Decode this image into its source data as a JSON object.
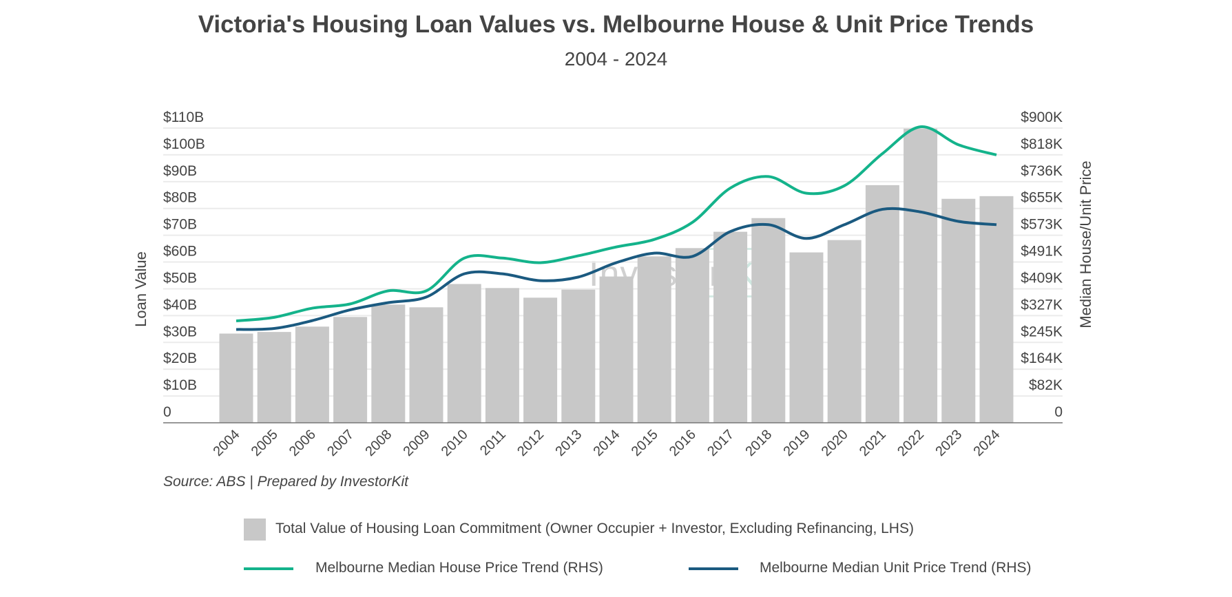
{
  "chart_data": {
    "type": "bar+line",
    "title": "Victoria's Housing Loan Values vs. Melbourne House & Unit Price Trends",
    "subtitle": "2004 - 2024",
    "ylabel": "Loan Value",
    "y2label": "Median House/Unit Price",
    "categories": [
      "2004",
      "2005",
      "2006",
      "2007",
      "2008",
      "2009",
      "2010",
      "2011",
      "2012",
      "2013",
      "2014",
      "2015",
      "2016",
      "2017",
      "2018",
      "2019",
      "2020",
      "2021",
      "2022",
      "2023",
      "2024"
    ],
    "ylim": [
      0,
      110
    ],
    "y2lim": [
      0,
      900
    ],
    "yticks": [
      "0",
      "$10B",
      "$20B",
      "$30B",
      "$40B",
      "$50B",
      "$60B",
      "$70B",
      "$80B",
      "$90B",
      "$100B",
      "$110B"
    ],
    "y2ticks": [
      "0",
      "$82K",
      "$164K",
      "$245K",
      "$327K",
      "$409K",
      "$491K",
      "$573K",
      "$655K",
      "$736K",
      "$818K",
      "$900K"
    ],
    "grid": true,
    "legend_position": "bottom",
    "series": [
      {
        "name": "Total Value of Housing Loan Commitment (Owner Occupier + Investor, Excluding Refinancing, LHS)",
        "type": "bar",
        "axis": "left",
        "unit": "$B",
        "color": "#c8c8c8",
        "values": [
          33.3,
          33.9,
          35.9,
          39.5,
          44.1,
          43.1,
          51.8,
          50.3,
          46.7,
          49.7,
          54.6,
          62.1,
          65.2,
          71.3,
          76.4,
          63.6,
          68.2,
          88.7,
          109.8,
          83.6,
          84.6
        ]
      },
      {
        "name": "Melbourne Median House Price Trend (RHS)",
        "type": "line",
        "axis": "right",
        "unit": "$K",
        "color": "#14b38b",
        "values": [
          311,
          322,
          350,
          363,
          403,
          403,
          503,
          503,
          489,
          510,
          537,
          560,
          612,
          717,
          752,
          701,
          724,
          822,
          904,
          849,
          818
        ]
      },
      {
        "name": "Melbourne Median Unit Price Trend (RHS)",
        "type": "line",
        "axis": "right",
        "unit": "$K",
        "color": "#1b5a80",
        "values": [
          285,
          288,
          312,
          345,
          367,
          384,
          455,
          455,
          434,
          445,
          489,
          518,
          508,
          584,
          605,
          563,
          605,
          652,
          644,
          615,
          605
        ]
      }
    ],
    "source": "Source: ABS | Prepared by InvestorKit",
    "watermark": "InvestorKit"
  }
}
